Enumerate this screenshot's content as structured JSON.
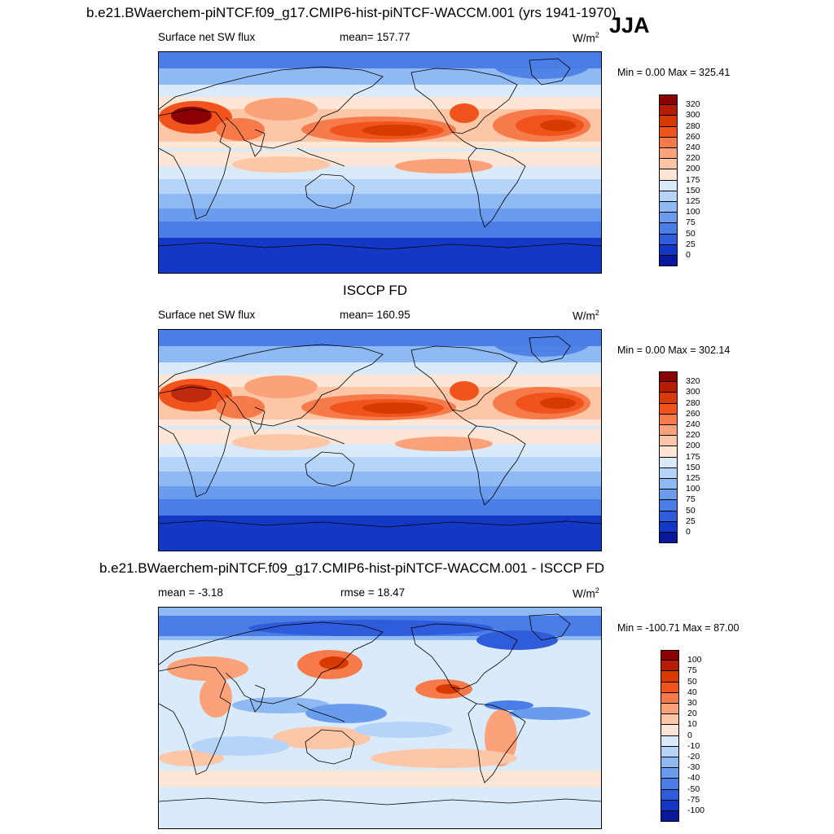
{
  "header": {
    "title": "b.e21.BWaerchem-piNTCF.f09_g17.CMIP6-hist-piNTCF-WACCM.001 (yrs 1941-1970)",
    "season": "JJA"
  },
  "panels": [
    {
      "id": "model",
      "title": "",
      "left_label": "Surface net SW flux",
      "center_label": "mean= 157.77",
      "units_base": "W/m",
      "units_sup": "2",
      "stats": "Min =   0.00 Max = 325.41"
    },
    {
      "id": "obs",
      "title": "ISCCP FD",
      "left_label": "Surface net SW flux",
      "center_label": "mean= 160.95",
      "units_base": "W/m",
      "units_sup": "2",
      "stats": "Min =   0.00 Max = 302.14"
    },
    {
      "id": "diff",
      "title": "b.e21.BWaerchem-piNTCF.f09_g17.CMIP6-hist-piNTCF-WACCM.001 - ISCCP FD",
      "left_label": "mean =  -3.18",
      "center_label": "rmse =  18.47",
      "units_base": "W/m",
      "units_sup": "2",
      "stats": "Min = -100.71 Max =  87.00"
    }
  ],
  "colorbars": {
    "abs": {
      "labels": [
        "320",
        "300",
        "280",
        "260",
        "240",
        "220",
        "200",
        "175",
        "150",
        "125",
        "100",
        "75",
        "50",
        "25",
        "0"
      ],
      "colors": [
        "#8b0000",
        "#b51c00",
        "#d93a00",
        "#f0541c",
        "#f77a4a",
        "#fba27a",
        "#fdc6a6",
        "#fde6d6",
        "#d9ebfb",
        "#b6d4f8",
        "#8fb9f3",
        "#6a9cee",
        "#4a7de6",
        "#2e5cdb",
        "#1438c6",
        "#08199b"
      ]
    },
    "diff": {
      "labels": [
        "100",
        "75",
        "50",
        "40",
        "30",
        "20",
        "10",
        "0",
        "-10",
        "-20",
        "-30",
        "-40",
        "-50",
        "-75",
        "-100"
      ],
      "colors": [
        "#8b0000",
        "#b51c00",
        "#d93a00",
        "#f0541c",
        "#f77a4a",
        "#fba27a",
        "#fdc6a6",
        "#fde6d6",
        "#d9ebfb",
        "#b6d4f8",
        "#8fb9f3",
        "#6a9cee",
        "#4a7de6",
        "#2e5cdb",
        "#1438c6",
        "#08199b"
      ]
    }
  },
  "chart_data": [
    {
      "type": "heatmap",
      "title": "b.e21.BWaerchem-piNTCF.f09_g17.CMIP6-hist-piNTCF-WACCM.001 (yrs 1941-1970) JJA",
      "variable": "Surface net SW flux",
      "units": "W/m2",
      "mean": 157.77,
      "min": 0.0,
      "max": 325.41,
      "colorbar_levels": [
        0,
        25,
        50,
        75,
        100,
        125,
        150,
        175,
        200,
        220,
        240,
        260,
        280,
        300,
        320
      ],
      "x": "longitude (0-360)",
      "y": "latitude (-90 to 90)"
    },
    {
      "type": "heatmap",
      "title": "ISCCP FD",
      "variable": "Surface net SW flux",
      "units": "W/m2",
      "mean": 160.95,
      "min": 0.0,
      "max": 302.14,
      "colorbar_levels": [
        0,
        25,
        50,
        75,
        100,
        125,
        150,
        175,
        200,
        220,
        240,
        260,
        280,
        300,
        320
      ],
      "x": "longitude (0-360)",
      "y": "latitude (-90 to 90)"
    },
    {
      "type": "heatmap",
      "title": "b.e21.BWaerchem-piNTCF.f09_g17.CMIP6-hist-piNTCF-WACCM.001 - ISCCP FD",
      "variable": "Surface net SW flux difference",
      "units": "W/m2",
      "mean": -3.18,
      "rmse": 18.47,
      "min": -100.71,
      "max": 87.0,
      "colorbar_levels": [
        -100,
        -75,
        -50,
        -40,
        -30,
        -20,
        -10,
        0,
        10,
        20,
        30,
        40,
        50,
        75,
        100
      ],
      "x": "longitude (0-360)",
      "y": "latitude (-90 to 90)"
    }
  ]
}
